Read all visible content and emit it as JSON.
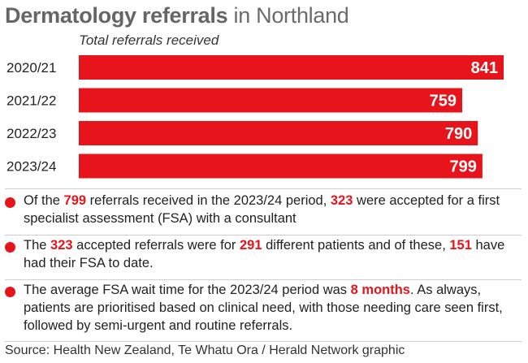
{
  "title": {
    "bold": "Dermatology referrals",
    "rest": "in Northland"
  },
  "subtitle": "Total referrals received",
  "colors": {
    "bar": "#e8141b",
    "highlight": "#e8141b",
    "title": "#6b6b6b"
  },
  "chart_data": {
    "type": "bar",
    "orientation": "horizontal",
    "title": "Dermatology referrals in Northland",
    "subtitle": "Total referrals received",
    "categories": [
      "2020/21",
      "2021/22",
      "2022/23",
      "2023/24"
    ],
    "values": [
      841,
      759,
      790,
      799
    ],
    "value_labels": [
      "841",
      "759",
      "790",
      "799"
    ],
    "xlim": [
      0,
      841
    ],
    "grid": false,
    "legend": "none"
  },
  "notes": [
    {
      "parts": [
        {
          "text": "Of the "
        },
        {
          "text": "799",
          "highlight": true
        },
        {
          "text": " referrals received in the 2023/24 period, "
        },
        {
          "text": "323",
          "highlight": true
        },
        {
          "text": " were accepted for a first specialist assessment (FSA) with a consultant"
        }
      ]
    },
    {
      "parts": [
        {
          "text": "The "
        },
        {
          "text": "323",
          "highlight": true
        },
        {
          "text": " accepted referrals were for "
        },
        {
          "text": "291",
          "highlight": true
        },
        {
          "text": " different patients and of these, "
        },
        {
          "text": "151",
          "highlight": true
        },
        {
          "text": " have had their FSA to date."
        }
      ]
    },
    {
      "parts": [
        {
          "text": "The average FSA wait time for the 2023/24 period was "
        },
        {
          "text": "8 months",
          "highlight": true
        },
        {
          "text": ". As always, patients are prioritised based on clinical need, with those needing care seen first, followed by semi-urgent and routine referrals."
        }
      ]
    }
  ],
  "source": "Source: Health New Zealand, Te Whatu Ora  / Herald Network graphic"
}
